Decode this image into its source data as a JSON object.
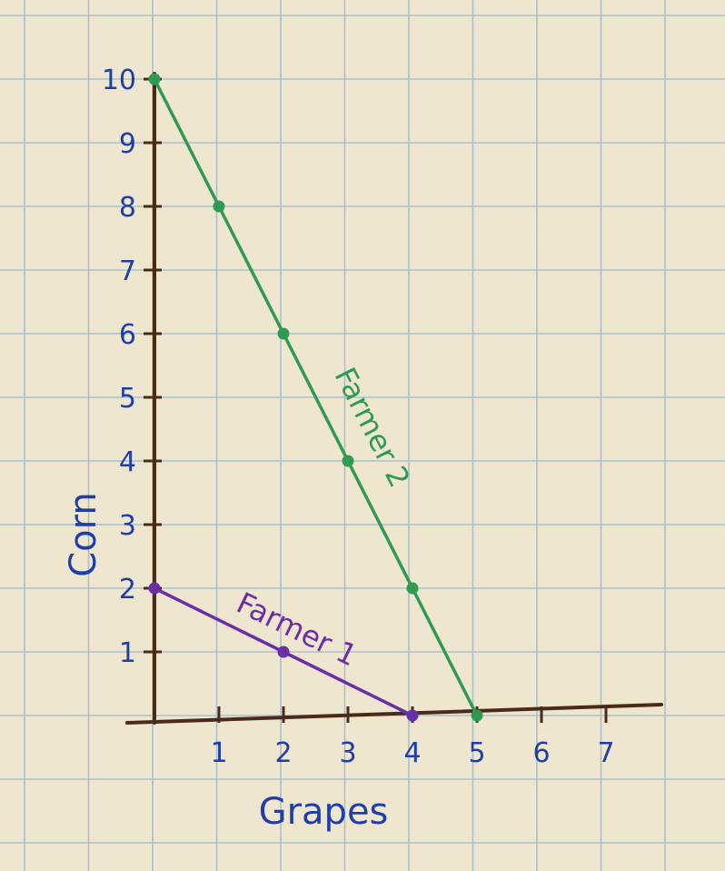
{
  "chart_data": {
    "type": "line",
    "xlabel": "Grapes",
    "ylabel": "Corn",
    "x_ticks": [
      "1",
      "2",
      "3",
      "4",
      "5",
      "6",
      "7"
    ],
    "y_ticks": [
      "1",
      "2",
      "3",
      "4",
      "5",
      "6",
      "7",
      "8",
      "9",
      "10"
    ],
    "xlim": [
      0,
      8
    ],
    "ylim": [
      0,
      10
    ],
    "grid": true,
    "series": [
      {
        "name": "Farmer 2",
        "color": "#2e9a52",
        "points": [
          [
            0,
            10
          ],
          [
            1,
            8
          ],
          [
            2,
            6
          ],
          [
            3,
            4
          ],
          [
            4,
            2
          ],
          [
            5,
            0
          ]
        ]
      },
      {
        "name": "Farmer 1",
        "color": "#6a2fa6",
        "points": [
          [
            0,
            2
          ],
          [
            2,
            1
          ],
          [
            4,
            0
          ]
        ]
      }
    ]
  },
  "colors": {
    "paper": "#efe6d0",
    "grid": "#a8c0cc",
    "axis": "#4a2a18",
    "ink": "#1f3ea8"
  }
}
